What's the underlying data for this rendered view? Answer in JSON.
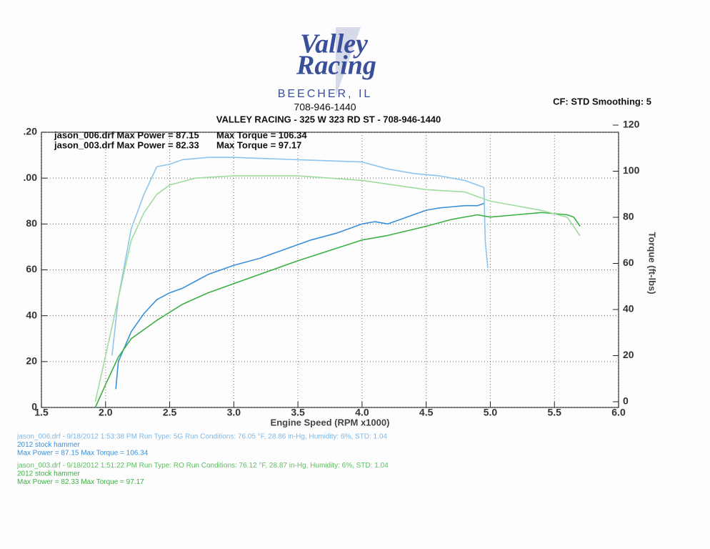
{
  "header": {
    "logo_top": "Valley",
    "logo_bottom": "Racing",
    "city": "BEECHER, IL",
    "phone": "708-946-1440",
    "settings": "CF: STD  Smoothing: 5"
  },
  "chart_data": {
    "type": "line",
    "title": "VALLEY RACING  - 325 W 323 RD ST - 708-946-1440",
    "xlabel": "Engine Speed (RPM x1000)",
    "y2label": "Torque (ft-lbs)",
    "legend_box": [
      [
        "jason_006.drf Max Power = 87.15",
        "Max Torque = 106.34"
      ],
      [
        "jason_003.drf Max Power = 82.33",
        "Max Torque = 97.17"
      ]
    ],
    "xlim": [
      1.5,
      6.0
    ],
    "xticks": [
      1.5,
      {
        "value": 2,
        "label": "2.0"
      },
      2.5,
      {
        "value": 3,
        "label": "3.0"
      },
      3.5,
      {
        "value": 4,
        "label": "4.0"
      },
      4.5,
      {
        "value": 5,
        "label": "5.0"
      },
      5.5,
      {
        "value": 6,
        "label": "6.0"
      }
    ],
    "ylim": [
      0,
      120
    ],
    "yticks": [
      0,
      20,
      40,
      60,
      80,
      {
        "value": 100,
        "label": ".00"
      },
      {
        "value": 120,
        "label": ".20"
      }
    ],
    "y2lim": [
      0,
      120
    ],
    "y2ticks": [
      0,
      20,
      40,
      60,
      80,
      100,
      120
    ],
    "grid": true,
    "series": [
      {
        "color": "#3b8fd9",
        "x": [
          2.08,
          2.1,
          2.2,
          2.3,
          2.4,
          2.5,
          2.6,
          2.7,
          2.8,
          2.9,
          3.0,
          3.2,
          3.4,
          3.6,
          3.8,
          4.0,
          4.1,
          4.2,
          4.3,
          4.4,
          4.5,
          4.6,
          4.8,
          4.9,
          4.95
        ],
        "values": [
          8,
          20,
          33,
          41,
          47,
          50,
          52,
          55,
          58,
          60,
          62,
          65,
          69,
          73,
          76,
          80,
          81,
          80,
          82,
          84,
          86,
          87,
          88,
          88,
          89
        ]
      },
      {
        "color": "#8ec5ee",
        "axis": "y2",
        "x": [
          2.05,
          2.1,
          2.2,
          2.3,
          2.4,
          2.5,
          2.6,
          2.8,
          3.0,
          3.5,
          4.0,
          4.2,
          4.4,
          4.6,
          4.8,
          4.9,
          4.95,
          4.96,
          4.98
        ],
        "values": [
          20,
          45,
          75,
          90,
          102,
          103,
          105,
          106,
          106,
          105,
          104,
          101,
          99,
          98,
          96,
          94,
          93,
          70,
          58
        ]
      },
      {
        "color": "#3cb043",
        "x": [
          1.92,
          2.0,
          2.1,
          2.2,
          2.4,
          2.6,
          2.8,
          3.0,
          3.5,
          4.0,
          4.2,
          4.5,
          4.7,
          4.9,
          5.0,
          5.2,
          5.4,
          5.6,
          5.65,
          5.7
        ],
        "values": [
          0,
          10,
          22,
          30,
          38,
          45,
          50,
          54,
          64,
          73,
          75,
          79,
          82,
          84,
          83,
          84,
          85,
          84,
          83,
          79
        ]
      },
      {
        "color": "#9edca0",
        "axis": "y2",
        "x": [
          1.92,
          2.0,
          2.1,
          2.2,
          2.3,
          2.4,
          2.5,
          2.7,
          3.0,
          3.5,
          4.0,
          4.5,
          4.8,
          5.0,
          5.2,
          5.4,
          5.6,
          5.7
        ],
        "values": [
          0,
          20,
          45,
          70,
          82,
          90,
          94,
          97,
          98,
          98,
          96,
          92,
          91,
          87,
          85,
          83,
          80,
          72
        ]
      }
    ]
  },
  "footer": [
    {
      "text": "jason_006.drf - 9/18/2012 1:53:38 PM  Run Type: 5G  Run Conditions: 76.05 °F, 28.86 in-Hg,  Humidity:  6%, STD: 1.04",
      "color": "#7fb8e6"
    },
    {
      "text": "2012 stock hammer",
      "color": "#3b8fd9"
    },
    {
      "text": "Max Power = 87.15  Max Torque = 106.34",
      "color": "#3b8fd9"
    },
    {
      "text": "jason_003.drf - 9/18/2012 1:51:22 PM  Run Type: RO  Run Conditions: 76.12 °F, 28.87 in-Hg,  Humidity:  6%, STD: 1.04",
      "color": "#5cc060"
    },
    {
      "text": "2012 stock hammer",
      "color": "#3cb043"
    },
    {
      "text": "Max Power = 82.33  Max Torque = 97.17",
      "color": "#3cb043"
    }
  ]
}
